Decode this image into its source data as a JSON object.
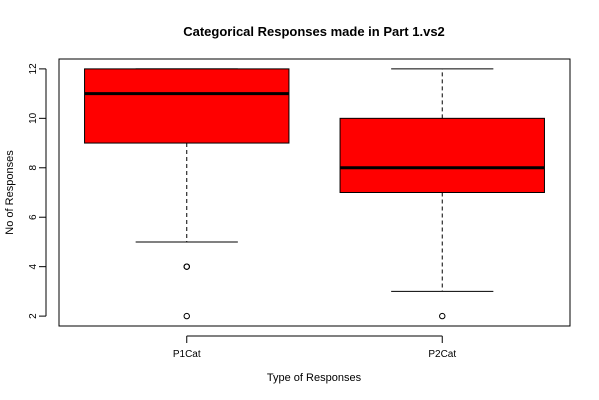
{
  "chart_data": {
    "type": "boxplot",
    "title": "Categorical Responses made in Part 1.vs2",
    "xlabel": "Type of Responses",
    "ylabel": "No of Responses",
    "categories": [
      "P1Cat",
      "P2Cat"
    ],
    "ylim": [
      1.6,
      12.4
    ],
    "yticks": [
      2,
      4,
      6,
      8,
      10,
      12
    ],
    "box_color": "#ff0000",
    "boxes": [
      {
        "category": "P1Cat",
        "whisker_low": 5,
        "q1": 9,
        "median": 11,
        "q3": 12,
        "whisker_high": 12,
        "outliers": [
          4,
          4,
          2
        ]
      },
      {
        "category": "P2Cat",
        "whisker_low": 3,
        "q1": 7,
        "median": 8,
        "q3": 10,
        "whisker_high": 12,
        "outliers": [
          2
        ]
      }
    ],
    "grid": false,
    "legend": "none"
  }
}
